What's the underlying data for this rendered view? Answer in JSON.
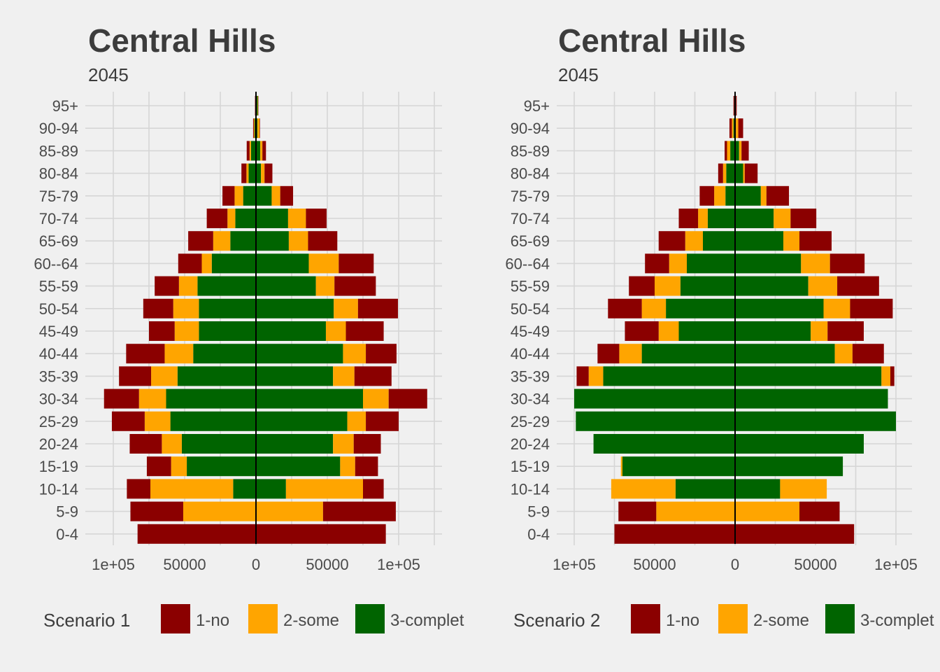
{
  "categories": [
    "1-no",
    "2-some",
    "3-complet"
  ],
  "colors": {
    "1-no": "#8b0000",
    "2-some": "#ffa500",
    "3-complet": "#006400"
  },
  "chart_data": [
    {
      "type": "bar",
      "orientation": "horizontal-population-pyramid",
      "title": "Central Hills",
      "subtitle": "2045",
      "legend_title": "Scenario 1",
      "xticks": [
        -100000,
        -50000,
        0,
        50000,
        100000
      ],
      "xtick_labels": [
        "1e+05",
        "50000",
        "0",
        "50000",
        "1e+05"
      ],
      "xlim": [
        -122000,
        130000
      ],
      "age_groups": [
        "0-4",
        "5-9",
        "10-14",
        "15-19",
        "20-24",
        "25-29",
        "30-34",
        "35-39",
        "40-44",
        "45-49",
        "50-54",
        "55-59",
        "60--64",
        "65-69",
        "70-74",
        "75-79",
        "80-84",
        "85-89",
        "90-94",
        "95+"
      ],
      "left_side": [
        {
          "name": "3-complet",
          "values": [
            0,
            0,
            16000,
            48500,
            52000,
            60000,
            63000,
            55000,
            44000,
            40000,
            40000,
            41000,
            31000,
            18000,
            14500,
            9000,
            5200,
            3500,
            1000,
            300
          ]
        },
        {
          "name": "2-some",
          "values": [
            0,
            51000,
            58000,
            11000,
            14000,
            18000,
            19000,
            18500,
            20000,
            17000,
            18000,
            13000,
            7000,
            12000,
            5500,
            6000,
            1500,
            1000,
            500,
            200
          ]
        },
        {
          "name": "1-no",
          "values": [
            83000,
            37000,
            16500,
            17000,
            22500,
            23000,
            24500,
            22500,
            27000,
            18000,
            21000,
            17000,
            16500,
            17500,
            14500,
            8500,
            3500,
            2000,
            500,
            200
          ]
        }
      ],
      "right_side": [
        {
          "name": "3-complet",
          "values": [
            0,
            0,
            21000,
            59000,
            54000,
            64000,
            75000,
            54000,
            61000,
            49000,
            54500,
            42000,
            37000,
            23000,
            22500,
            11000,
            3500,
            3000,
            1000,
            1200
          ]
        },
        {
          "name": "2-some",
          "values": [
            0,
            47000,
            54000,
            10500,
            14500,
            13000,
            18000,
            15000,
            16000,
            14000,
            17000,
            13000,
            21000,
            13500,
            12500,
            6000,
            2500,
            1500,
            1500,
            300
          ]
        },
        {
          "name": "1-no",
          "values": [
            91000,
            51000,
            14500,
            16000,
            19000,
            23000,
            27000,
            26000,
            21500,
            26500,
            28000,
            29000,
            24500,
            20500,
            14500,
            9000,
            5500,
            2500,
            300,
            200
          ]
        }
      ]
    },
    {
      "type": "bar",
      "orientation": "horizontal-population-pyramid",
      "title": "Central Hills",
      "subtitle": "2045",
      "legend_title": "Scenario 2",
      "xticks": [
        -100000,
        -50000,
        0,
        50000,
        100000
      ],
      "xtick_labels": [
        "1e+05",
        "50000",
        "0",
        "50000",
        "1e+05"
      ],
      "xlim": [
        -112000,
        110000
      ],
      "age_groups": [
        "0-4",
        "5-9",
        "10-14",
        "15-19",
        "20-24",
        "25-29",
        "30-34",
        "35-39",
        "40-44",
        "45-49",
        "50-54",
        "55-59",
        "60--64",
        "65-69",
        "70-74",
        "75-79",
        "80-84",
        "85-89",
        "90-94",
        "95+"
      ],
      "left_side": [
        {
          "name": "3-complet",
          "values": [
            0,
            0,
            37000,
            70000,
            88000,
            99000,
            100000,
            82000,
            58000,
            35000,
            43000,
            34000,
            30000,
            20000,
            17000,
            6000,
            5500,
            3000,
            1000,
            500
          ]
        },
        {
          "name": "2-some",
          "values": [
            0,
            49000,
            40000,
            1000,
            0,
            0,
            0,
            9000,
            14000,
            12500,
            15000,
            16000,
            11000,
            11000,
            6000,
            7000,
            2000,
            2000,
            1000,
            0
          ]
        },
        {
          "name": "1-no",
          "values": [
            75000,
            23500,
            0,
            0,
            0,
            0,
            0,
            7500,
            13500,
            21000,
            21000,
            16000,
            15000,
            16500,
            12000,
            9000,
            3000,
            1500,
            1500,
            500
          ]
        }
      ],
      "right_side": [
        {
          "name": "3-complet",
          "values": [
            0,
            0,
            28000,
            67000,
            80000,
            100000,
            95000,
            91000,
            62000,
            47000,
            55000,
            45500,
            41000,
            30000,
            24000,
            16000,
            5000,
            2500,
            500,
            500
          ]
        },
        {
          "name": "2-some",
          "values": [
            0,
            40000,
            29000,
            0,
            0,
            0,
            0,
            5500,
            11000,
            10500,
            16500,
            18000,
            18000,
            10000,
            10500,
            3500,
            1000,
            1500,
            1500,
            0
          ]
        },
        {
          "name": "1-no",
          "values": [
            74000,
            25000,
            0,
            0,
            0,
            0,
            0,
            2500,
            19500,
            22500,
            26500,
            26000,
            21500,
            20000,
            16000,
            14000,
            8000,
            4500,
            3000,
            500
          ]
        }
      ]
    }
  ]
}
